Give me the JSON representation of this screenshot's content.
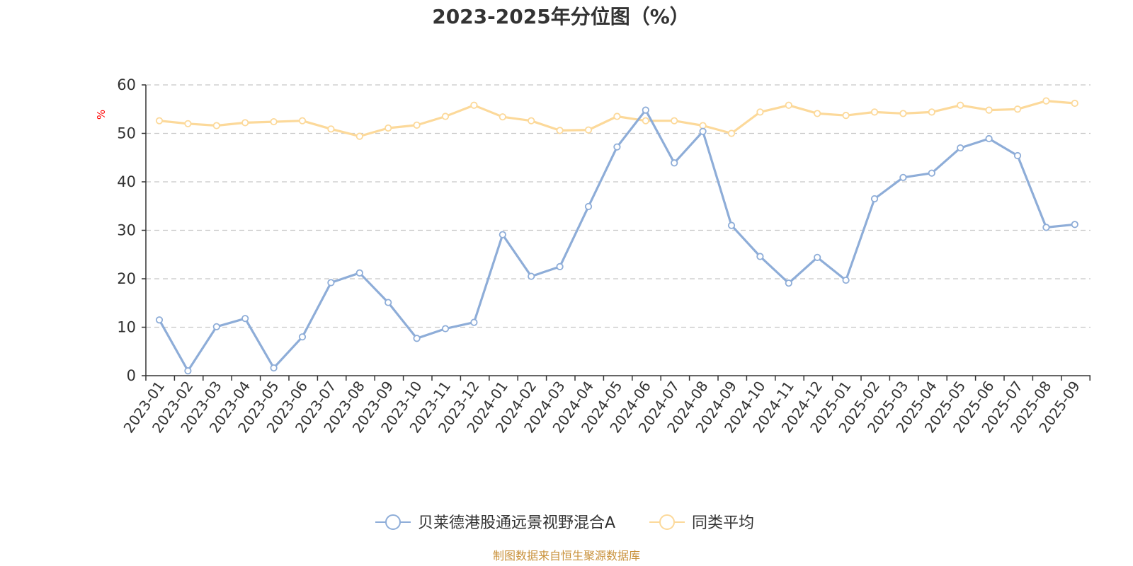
{
  "chart_data": {
    "type": "line",
    "title": "2023-2025年分位图（%）",
    "ylabel": "%",
    "xlabel": "",
    "ylim": [
      0,
      60
    ],
    "yticks": [
      0,
      10,
      20,
      30,
      40,
      50,
      60
    ],
    "grid": true,
    "legend_position": "bottom-center",
    "categories": [
      "2023-01",
      "2023-02",
      "2023-03",
      "2023-04",
      "2023-05",
      "2023-06",
      "2023-07",
      "2023-08",
      "2023-09",
      "2023-10",
      "2023-11",
      "2023-12",
      "2024-01",
      "2024-02",
      "2024-03",
      "2024-04",
      "2024-05",
      "2024-06",
      "2024-07",
      "2024-08",
      "2024-09",
      "2024-10",
      "2024-11",
      "2024-12",
      "2025-01",
      "2025-02",
      "2025-03",
      "2025-04",
      "2025-05",
      "2025-06",
      "2025-07",
      "2025-08",
      "2025-09"
    ],
    "series": [
      {
        "name": "贝莱德港股通远景视野混合A",
        "color": "#8eadd8",
        "values": [
          11.5,
          1.0,
          10.1,
          11.8,
          1.6,
          8.0,
          19.2,
          21.2,
          15.1,
          7.7,
          9.7,
          11.0,
          29.1,
          20.5,
          22.5,
          34.9,
          47.2,
          54.8,
          43.9,
          50.4,
          31.0,
          24.6,
          19.1,
          24.4,
          19.7,
          36.5,
          40.9,
          41.8,
          47.0,
          48.9,
          45.4,
          30.6,
          31.2
        ]
      },
      {
        "name": "同类平均",
        "color": "#fcd99a",
        "values": [
          52.6,
          52.0,
          51.6,
          52.2,
          52.4,
          52.6,
          50.9,
          49.4,
          51.1,
          51.7,
          53.5,
          55.8,
          53.4,
          52.6,
          50.6,
          50.7,
          53.5,
          52.6,
          52.6,
          51.6,
          50.0,
          54.4,
          55.8,
          54.1,
          53.7,
          54.4,
          54.1,
          54.4,
          55.8,
          54.8,
          55.0,
          56.7,
          56.2
        ]
      }
    ],
    "source": "制图数据来自恒生聚源数据库",
    "colors": {
      "axis": "#333333",
      "grid": "#c8c8c8",
      "unit_label": "#ff0000",
      "source_text": "#c9923c",
      "marker_fill": "#ffffff"
    }
  }
}
